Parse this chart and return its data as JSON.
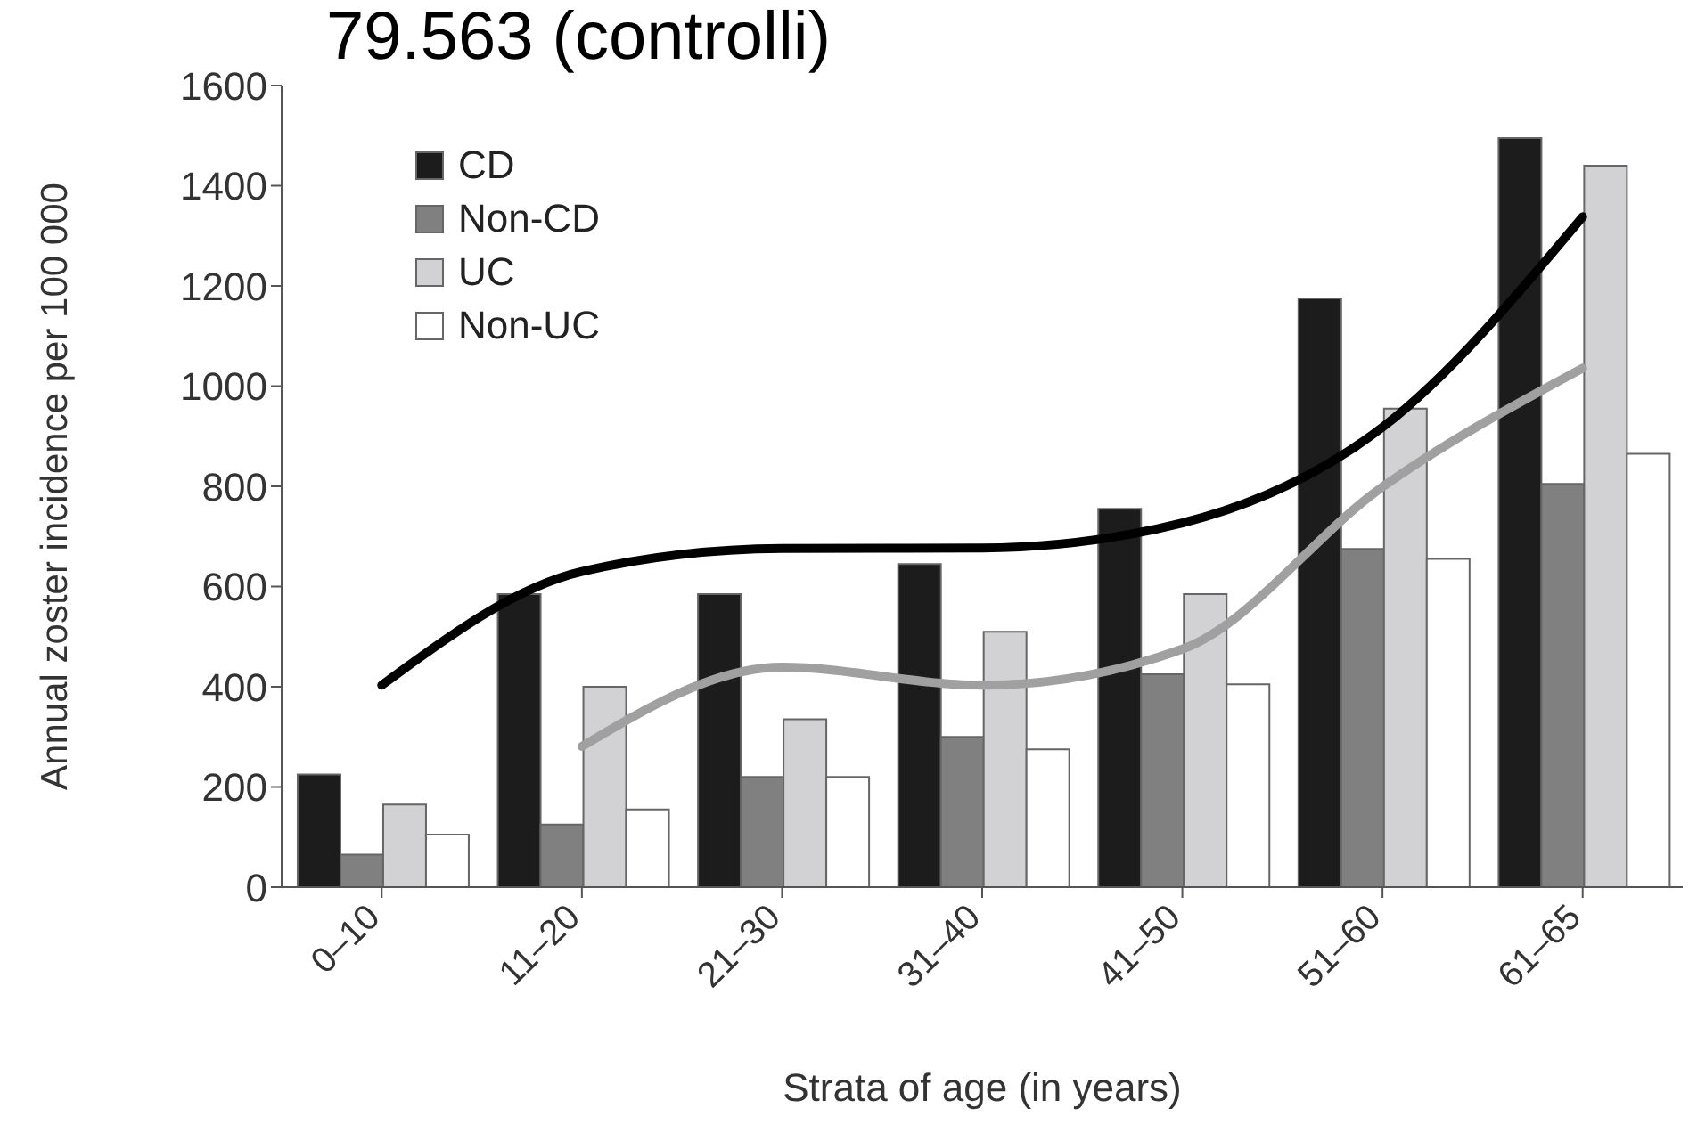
{
  "chart_data": {
    "type": "bar",
    "title": "79.563 (controlli)",
    "xlabel": "Strata of age (in years)",
    "ylabel": "Annual zoster incidence per 100 000",
    "categories": [
      "0–10",
      "11–20",
      "21–30",
      "31–40",
      "41–50",
      "51–60",
      "61–65"
    ],
    "series": [
      {
        "name": "CD",
        "color": "#1c1c1c",
        "values": [
          225,
          585,
          585,
          645,
          755,
          1175,
          1495
        ]
      },
      {
        "name": "Non-CD",
        "color": "#808080",
        "values": [
          65,
          125,
          220,
          300,
          425,
          675,
          805
        ]
      },
      {
        "name": "UC",
        "color": "#d2d2d4",
        "values": [
          165,
          400,
          335,
          510,
          585,
          955,
          1440
        ]
      },
      {
        "name": "Non-UC",
        "color": "#ffffff",
        "values": [
          105,
          155,
          220,
          275,
          405,
          655,
          865
        ]
      },
      {
        "type": "line",
        "color": "#000000",
        "values": [
          403,
          630,
          676,
          677,
          727,
          918,
          1338
        ]
      },
      {
        "type": "line",
        "color": "#a0a0a0",
        "values": [
          null,
          281,
          439,
          403,
          475,
          799,
          1036
        ]
      }
    ],
    "ylim": [
      0,
      1600
    ],
    "yticks": [
      0,
      200,
      400,
      600,
      800,
      1000,
      1200,
      1400,
      1600
    ],
    "grid": false,
    "legend": "top left",
    "marker": "none",
    "line_style": "solid"
  }
}
